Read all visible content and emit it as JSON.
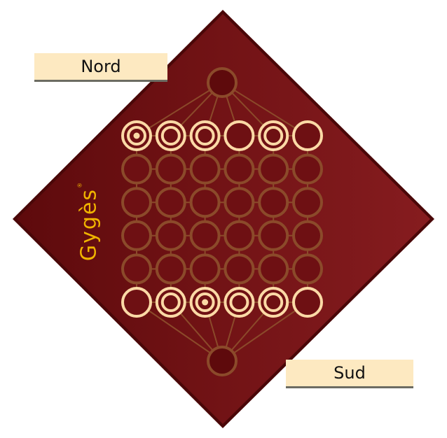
{
  "labels": {
    "north": "Nord",
    "south": "Sud"
  },
  "logo": {
    "text": "Gygès",
    "mark": "®"
  },
  "colors": {
    "board": "#7a1216",
    "board_dark": "#5e0a0c",
    "grid": "#8b4a2a",
    "piece": "#fbd9a6",
    "label_bg": "#fde9c1",
    "logo": "#f0b400"
  },
  "board": {
    "rows": 6,
    "cols": 6,
    "pieces": {
      "north_row": [
        3,
        2,
        2,
        1,
        2,
        1
      ],
      "south_row": [
        1,
        2,
        3,
        2,
        2,
        1
      ]
    }
  }
}
